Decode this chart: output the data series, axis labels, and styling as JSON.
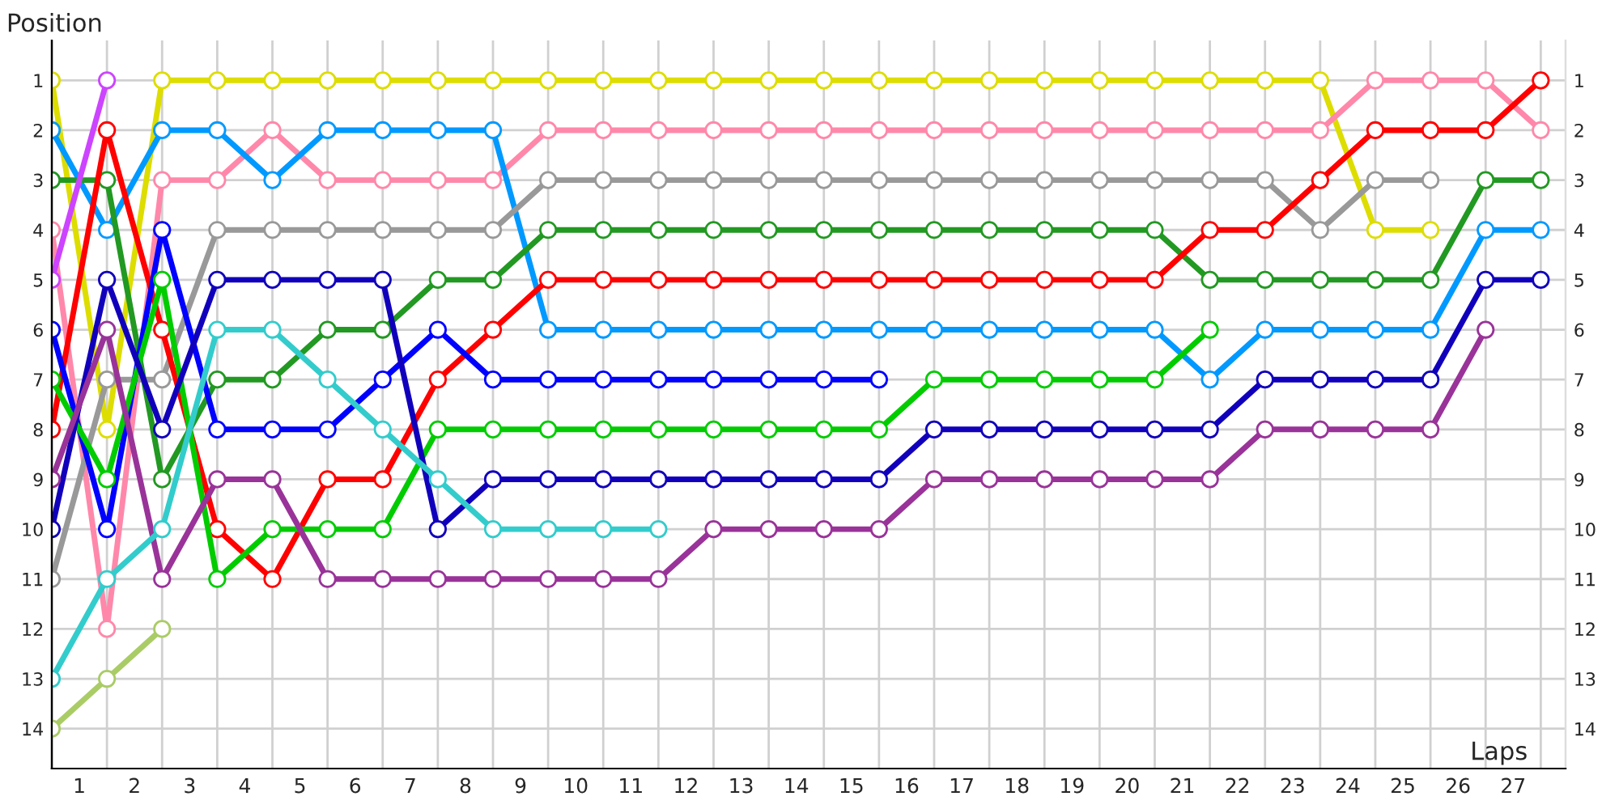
{
  "chart_data": {
    "type": "line",
    "xlabel": "Laps",
    "ylabel": "Position",
    "xlim": [
      0,
      27.45
    ],
    "ylim": [
      14.8,
      0.2
    ],
    "y2lim": [
      14.8,
      0.2
    ],
    "xticks": [
      {
        "value": 0,
        "label": null
      },
      {
        "value": 0.5,
        "label": "1"
      },
      {
        "value": 1,
        "label": null
      },
      {
        "value": 1.5,
        "label": "2"
      },
      {
        "value": 2,
        "label": null
      },
      {
        "value": 2.5,
        "label": "3"
      },
      {
        "value": 3,
        "label": null
      },
      {
        "value": 3.5,
        "label": "4"
      },
      {
        "value": 4,
        "label": null
      },
      {
        "value": 4.5,
        "label": "5"
      },
      {
        "value": 5,
        "label": null
      },
      {
        "value": 5.5,
        "label": "6"
      },
      {
        "value": 6,
        "label": null
      },
      {
        "value": 6.5,
        "label": "7"
      },
      {
        "value": 7,
        "label": null
      },
      {
        "value": 7.5,
        "label": "8"
      },
      {
        "value": 8,
        "label": null
      },
      {
        "value": 8.5,
        "label": "9"
      },
      {
        "value": 9,
        "label": null
      },
      {
        "value": 9.5,
        "label": "10"
      },
      {
        "value": 10,
        "label": null
      },
      {
        "value": 10.5,
        "label": "11"
      },
      {
        "value": 11,
        "label": null
      },
      {
        "value": 11.5,
        "label": "12"
      },
      {
        "value": 12,
        "label": null
      },
      {
        "value": 12.5,
        "label": "13"
      },
      {
        "value": 13,
        "label": null
      },
      {
        "value": 13.5,
        "label": "14"
      },
      {
        "value": 14,
        "label": null
      },
      {
        "value": 14.5,
        "label": "15"
      },
      {
        "value": 15,
        "label": null
      },
      {
        "value": 15.5,
        "label": "16"
      },
      {
        "value": 16,
        "label": null
      },
      {
        "value": 16.5,
        "label": "17"
      },
      {
        "value": 17,
        "label": null
      },
      {
        "value": 17.5,
        "label": "18"
      },
      {
        "value": 18,
        "label": null
      },
      {
        "value": 18.5,
        "label": "19"
      },
      {
        "value": 19,
        "label": null
      },
      {
        "value": 19.5,
        "label": "20"
      },
      {
        "value": 20,
        "label": null
      },
      {
        "value": 20.5,
        "label": "21"
      },
      {
        "value": 21,
        "label": null
      },
      {
        "value": 21.5,
        "label": "22"
      },
      {
        "value": 22,
        "label": null
      },
      {
        "value": 22.5,
        "label": "23"
      },
      {
        "value": 23,
        "label": null
      },
      {
        "value": 23.5,
        "label": "24"
      },
      {
        "value": 24,
        "label": null
      },
      {
        "value": 24.5,
        "label": "25"
      },
      {
        "value": 25,
        "label": null
      },
      {
        "value": 25.5,
        "label": "26"
      },
      {
        "value": 26,
        "label": null
      },
      {
        "value": 26.5,
        "label": "27"
      },
      {
        "value": 27,
        "label": null
      }
    ],
    "yticks": [
      1,
      2,
      3,
      4,
      5,
      6,
      7,
      8,
      9,
      10,
      11,
      12,
      13,
      14
    ],
    "y2ticks": [
      1,
      2,
      3,
      4,
      5,
      6,
      7,
      8,
      9,
      10,
      11,
      12,
      13,
      14
    ],
    "grid": true,
    "marker": "circle",
    "line_style": "solid",
    "series": [
      {
        "color": "#dddd00",
        "x": [
          0,
          1,
          2,
          3,
          4,
          5,
          6,
          7,
          8,
          9,
          10,
          11,
          12,
          13,
          14,
          15,
          16,
          17,
          18,
          19,
          20,
          21,
          22,
          23,
          24,
          25
        ],
        "values": [
          1,
          8,
          1,
          1,
          1,
          1,
          1,
          1,
          1,
          1,
          1,
          1,
          1,
          1,
          1,
          1,
          1,
          1,
          1,
          1,
          1,
          1,
          1,
          1,
          4,
          4
        ]
      },
      {
        "color": "#ff88aa",
        "x": [
          0,
          1,
          2,
          3,
          4,
          5,
          6,
          7,
          8,
          9,
          10,
          11,
          12,
          13,
          14,
          15,
          16,
          17,
          18,
          19,
          20,
          21,
          22,
          23,
          24,
          25,
          26,
          27
        ],
        "values": [
          4,
          12,
          3,
          3,
          2,
          3,
          3,
          3,
          3,
          2,
          2,
          2,
          2,
          2,
          2,
          2,
          2,
          2,
          2,
          2,
          2,
          2,
          2,
          2,
          1,
          1,
          1,
          2
        ]
      },
      {
        "color": "#0099ff",
        "x": [
          0,
          1,
          2,
          3,
          4,
          5,
          6,
          7,
          8,
          9,
          10,
          11,
          12,
          13,
          14,
          15,
          16,
          17,
          18,
          19,
          20,
          21,
          22,
          23,
          24,
          25,
          26,
          27
        ],
        "values": [
          2,
          4,
          2,
          2,
          3,
          2,
          2,
          2,
          2,
          6,
          6,
          6,
          6,
          6,
          6,
          6,
          6,
          6,
          6,
          6,
          6,
          7,
          6,
          6,
          6,
          6,
          4,
          4
        ]
      },
      {
        "color": "#999999",
        "x": [
          0,
          1,
          2,
          3,
          4,
          5,
          6,
          7,
          8,
          9,
          10,
          11,
          12,
          13,
          14,
          15,
          16,
          17,
          18,
          19,
          20,
          21,
          22,
          23,
          24,
          25
        ],
        "values": [
          11,
          7,
          7,
          4,
          4,
          4,
          4,
          4,
          4,
          3,
          3,
          3,
          3,
          3,
          3,
          3,
          3,
          3,
          3,
          3,
          3,
          3,
          3,
          4,
          3,
          3
        ]
      },
      {
        "color": "#229922",
        "x": [
          0,
          1,
          2,
          3,
          4,
          5,
          6,
          7,
          8,
          9,
          10,
          11,
          12,
          13,
          14,
          15,
          16,
          17,
          18,
          19,
          20,
          21,
          22,
          23,
          24,
          25,
          26,
          27
        ],
        "values": [
          3,
          3,
          9,
          7,
          7,
          6,
          6,
          5,
          5,
          4,
          4,
          4,
          4,
          4,
          4,
          4,
          4,
          4,
          4,
          4,
          4,
          5,
          5,
          5,
          5,
          5,
          3,
          3
        ]
      },
      {
        "color": "#ff0000",
        "x": [
          0,
          1,
          2,
          3,
          4,
          5,
          6,
          7,
          8,
          9,
          10,
          11,
          12,
          13,
          14,
          15,
          16,
          17,
          18,
          19,
          20,
          21,
          22,
          23,
          24,
          25,
          26,
          27
        ],
        "values": [
          8,
          2,
          6,
          10,
          11,
          9,
          9,
          7,
          6,
          5,
          5,
          5,
          5,
          5,
          5,
          5,
          5,
          5,
          5,
          5,
          5,
          4,
          4,
          3,
          2,
          2,
          2,
          1
        ]
      },
      {
        "color": "#cc44ff",
        "x": [
          0,
          1
        ],
        "values": [
          5,
          1
        ]
      },
      {
        "color": "#0000ff",
        "x": [
          0,
          1,
          2,
          3,
          4,
          5,
          6,
          7,
          8,
          9,
          10,
          11,
          12,
          13,
          14,
          15
        ],
        "values": [
          6,
          10,
          4,
          8,
          8,
          8,
          7,
          6,
          7,
          7,
          7,
          7,
          7,
          7,
          7,
          7
        ]
      },
      {
        "color": "#00cc00",
        "x": [
          0,
          1,
          2,
          3,
          4,
          5,
          6,
          7,
          8,
          9,
          10,
          11,
          12,
          13,
          14,
          15,
          16,
          17,
          18,
          19,
          20,
          21
        ],
        "values": [
          7,
          9,
          5,
          11,
          10,
          10,
          10,
          8,
          8,
          8,
          8,
          8,
          8,
          8,
          8,
          8,
          7,
          7,
          7,
          7,
          7,
          6
        ]
      },
      {
        "color": "#1100bb",
        "x": [
          0,
          1,
          2,
          3,
          4,
          5,
          6,
          7,
          8,
          9,
          10,
          11,
          12,
          13,
          14,
          15,
          16,
          17,
          18,
          19,
          20,
          21,
          22,
          23,
          24,
          25,
          26,
          27
        ],
        "values": [
          10,
          5,
          8,
          5,
          5,
          5,
          5,
          10,
          9,
          9,
          9,
          9,
          9,
          9,
          9,
          9,
          8,
          8,
          8,
          8,
          8,
          8,
          7,
          7,
          7,
          7,
          5,
          5
        ]
      },
      {
        "color": "#993399",
        "x": [
          0,
          1,
          2,
          3,
          4,
          5,
          6,
          7,
          8,
          9,
          10,
          11,
          12,
          13,
          14,
          15,
          16,
          17,
          18,
          19,
          20,
          21,
          22,
          23,
          24,
          25,
          26
        ],
        "values": [
          9,
          6,
          11,
          9,
          9,
          11,
          11,
          11,
          11,
          11,
          11,
          11,
          10,
          10,
          10,
          10,
          9,
          9,
          9,
          9,
          9,
          9,
          8,
          8,
          8,
          8,
          6
        ]
      },
      {
        "color": "#33cccc",
        "x": [
          0,
          1,
          2,
          3,
          4,
          5,
          6,
          7,
          8,
          9,
          10,
          11
        ],
        "values": [
          13,
          11,
          10,
          6,
          6,
          7,
          8,
          9,
          10,
          10,
          10,
          10
        ]
      },
      {
        "color": "#aacc66",
        "x": [
          0,
          1,
          2
        ],
        "values": [
          14,
          13,
          12
        ]
      }
    ]
  }
}
